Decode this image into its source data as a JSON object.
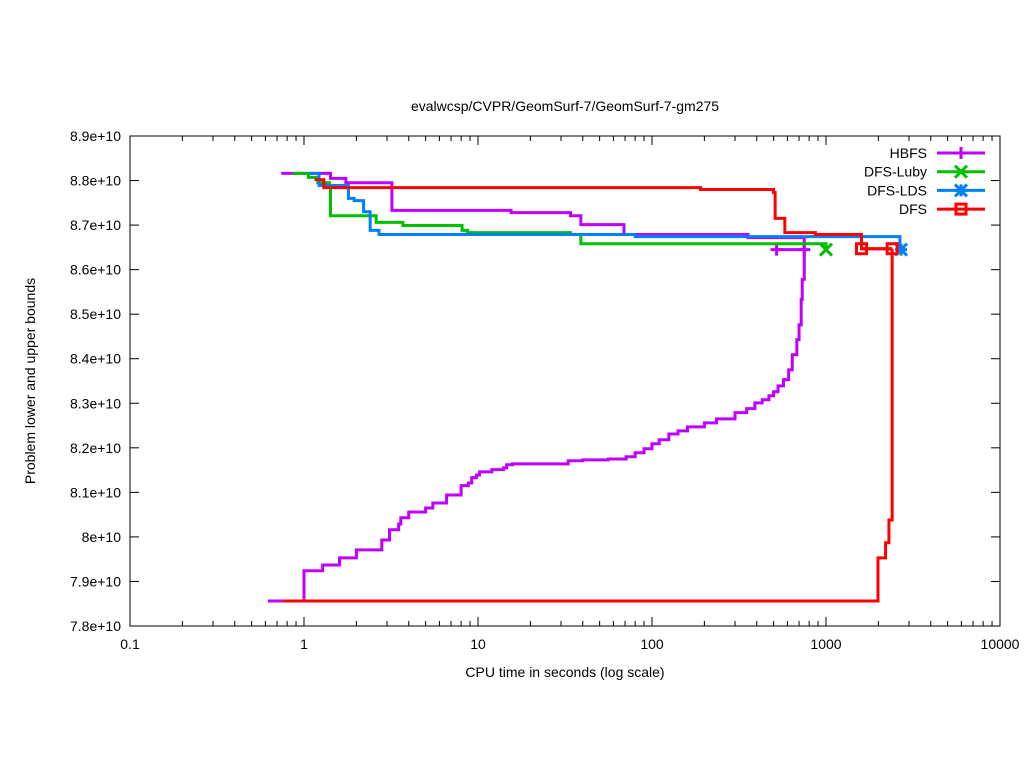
{
  "chart_data": {
    "type": "line",
    "title": "evalwcsp/CVPR/GeomSurf-7/GeomSurf-7-gm275",
    "xlabel": "CPU time in seconds (log scale)",
    "ylabel": "Problem lower and upper bounds",
    "xscale": "log",
    "xlim": [
      0.1,
      10000
    ],
    "ylim": [
      78000000000.0,
      89000000000.0
    ],
    "xticks": [
      0.1,
      1,
      10,
      100,
      1000,
      10000
    ],
    "xtick_labels": [
      "0.1",
      "1",
      "10",
      "100",
      "1000",
      "10000"
    ],
    "yticks": [
      78000000000.0,
      79000000000.0,
      80000000000.0,
      81000000000.0,
      82000000000.0,
      83000000000.0,
      84000000000.0,
      85000000000.0,
      86000000000.0,
      87000000000.0,
      88000000000.0,
      89000000000.0
    ],
    "ytick_labels": [
      "7.8e+10",
      "7.9e+10",
      "8e+10",
      "8.1e+10",
      "8.2e+10",
      "8.3e+10",
      "8.4e+10",
      "8.5e+10",
      "8.6e+10",
      "8.7e+10",
      "8.8e+10",
      "8.9e+10"
    ],
    "legend_position": "top-right",
    "series": [
      {
        "name": "HBFS",
        "color": "#c000ff",
        "marker": "plus",
        "upper": [
          [
            0.74,
            88160000000.0
          ],
          [
            1.42,
            88050000000.0
          ],
          [
            1.74,
            87950000000.0
          ],
          [
            3.2,
            87330000000.0
          ],
          [
            15.5,
            87280000000.0
          ],
          [
            34,
            87210000000.0
          ],
          [
            39,
            87010000000.0
          ],
          [
            69,
            86790000000.0
          ],
          [
            356,
            86720000000.0
          ],
          [
            750,
            86450000000.0
          ]
        ],
        "lower": [
          [
            0.62,
            78560000000.0
          ],
          [
            1.0,
            79240000000.0
          ],
          [
            1.28,
            79370000000.0
          ],
          [
            1.6,
            79530000000.0
          ],
          [
            2.0,
            79710000000.0
          ],
          [
            2.8,
            79930000000.0
          ],
          [
            3.1,
            80160000000.0
          ],
          [
            3.5,
            80290000000.0
          ],
          [
            3.6,
            80430000000.0
          ],
          [
            4.0,
            80560000000.0
          ],
          [
            5.0,
            80650000000.0
          ],
          [
            5.5,
            80760000000.0
          ],
          [
            6.6,
            80940000000.0
          ],
          [
            8.0,
            81150000000.0
          ],
          [
            8.8,
            81210000000.0
          ],
          [
            9.2,
            81330000000.0
          ],
          [
            9.8,
            81390000000.0
          ],
          [
            10.2,
            81460000000.0
          ],
          [
            12,
            81510000000.0
          ],
          [
            14,
            81550000000.0
          ],
          [
            14.6,
            81620000000.0
          ],
          [
            15.8,
            81640000000.0
          ],
          [
            33,
            81710000000.0
          ],
          [
            40,
            81730000000.0
          ],
          [
            56,
            81750000000.0
          ],
          [
            71,
            81800000000.0
          ],
          [
            80,
            81890000000.0
          ],
          [
            90,
            81980000000.0
          ],
          [
            100,
            82090000000.0
          ],
          [
            110,
            82180000000.0
          ],
          [
            125,
            82310000000.0
          ],
          [
            141,
            82380000000.0
          ],
          [
            160,
            82470000000.0
          ],
          [
            200,
            82560000000.0
          ],
          [
            235,
            82650000000.0
          ],
          [
            300,
            82790000000.0
          ],
          [
            350,
            82880000000.0
          ],
          [
            390,
            83010000000.0
          ],
          [
            430,
            83080000000.0
          ],
          [
            470,
            83170000000.0
          ],
          [
            500,
            83260000000.0
          ],
          [
            530,
            83390000000.0
          ],
          [
            570,
            83530000000.0
          ],
          [
            610,
            83750000000.0
          ],
          [
            640,
            84090000000.0
          ],
          [
            680,
            84430000000.0
          ],
          [
            700,
            84760000000.0
          ],
          [
            720,
            85330000000.0
          ],
          [
            730,
            85780000000.0
          ],
          [
            750,
            86450000000.0
          ]
        ],
        "markers": [
          [
            520,
            86450000000.0
          ],
          [
            750,
            86450000000.0
          ]
        ]
      },
      {
        "name": "DFS-Luby",
        "color": "#00c000",
        "marker": "cross",
        "upper": [
          [
            0.86,
            88160000000.0
          ],
          [
            1.06,
            88070000000.0
          ],
          [
            1.2,
            87950000000.0
          ],
          [
            1.4,
            87860000000.0
          ],
          [
            1.42,
            87210000000.0
          ],
          [
            2.6,
            87060000000.0
          ],
          [
            3.7,
            86990000000.0
          ],
          [
            8.1,
            86880000000.0
          ],
          [
            8.7,
            86830000000.0
          ],
          [
            34,
            86790000000.0
          ],
          [
            39,
            86580000000.0
          ],
          [
            1000,
            86580000000.0
          ],
          [
            1000,
            86450000000.0
          ]
        ],
        "lower": [],
        "markers": [
          [
            1000,
            86450000000.0
          ]
        ]
      },
      {
        "name": "DFS-LDS",
        "color": "#0080ff",
        "marker": "star",
        "upper": [
          [
            1.08,
            88160000000.0
          ],
          [
            1.22,
            87890000000.0
          ],
          [
            1.8,
            87600000000.0
          ],
          [
            1.94,
            87550000000.0
          ],
          [
            2.2,
            87300000000.0
          ],
          [
            2.4,
            86880000000.0
          ],
          [
            2.7,
            86790000000.0
          ],
          [
            80,
            86740000000.0
          ],
          [
            2660,
            86740000000.0
          ],
          [
            2660,
            86450000000.0
          ]
        ],
        "lower": [],
        "markers": [
          [
            2700,
            86450000000.0
          ]
        ]
      },
      {
        "name": "DFS",
        "color": "#ff0000",
        "marker": "square",
        "upper": [
          [
            1.15,
            88020000000.0
          ],
          [
            1.3,
            87840000000.0
          ],
          [
            190,
            87800000000.0
          ],
          [
            500,
            87730000000.0
          ],
          [
            510,
            87150000000.0
          ],
          [
            580,
            86830000000.0
          ],
          [
            870,
            86790000000.0
          ],
          [
            1600,
            86470000000.0
          ],
          [
            2400,
            86470000000.0
          ]
        ],
        "lower": [
          [
            0.76,
            78560000000.0
          ],
          [
            1990,
            79530000000.0
          ],
          [
            2200,
            79870000000.0
          ],
          [
            2300,
            80380000000.0
          ],
          [
            2400,
            86470000000.0
          ]
        ],
        "markers": [
          [
            1600,
            86470000000.0
          ],
          [
            2400,
            86470000000.0
          ]
        ]
      }
    ]
  }
}
